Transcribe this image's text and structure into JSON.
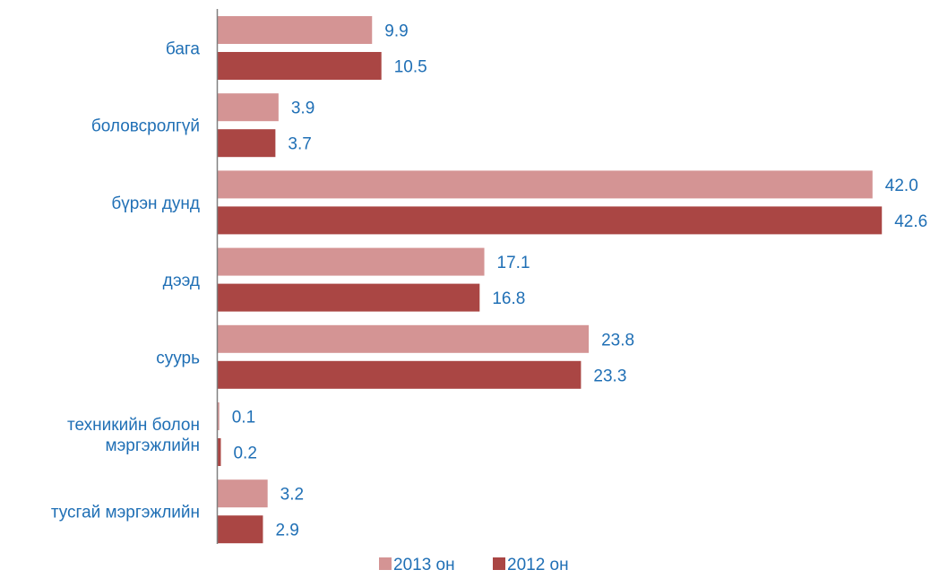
{
  "chart_data": {
    "type": "bar",
    "orientation": "horizontal",
    "categories": [
      [
        "бага"
      ],
      [
        "боловсролгүй"
      ],
      [
        "бүрэн дунд"
      ],
      [
        "дээд"
      ],
      [
        "суурь"
      ],
      [
        "техникийн болон",
        "мэргэжлийн"
      ],
      [
        "тусгай мэргэжлийн"
      ]
    ],
    "series": [
      {
        "name": "2013 он",
        "color": "#d49494",
        "values": [
          9.9,
          3.9,
          42.0,
          17.1,
          23.8,
          0.1,
          3.2
        ],
        "labels": [
          "9.9",
          "3.9",
          "42.0",
          "17.1",
          "23.8",
          "0.1",
          "3.2"
        ]
      },
      {
        "name": "2012 он",
        "color": "#aa4644",
        "values": [
          10.5,
          3.7,
          42.6,
          16.8,
          23.3,
          0.2,
          2.9
        ],
        "labels": [
          "10.5",
          "3.7",
          "42.6",
          "16.8",
          "23.3",
          "0.2",
          "2.9"
        ]
      }
    ],
    "xlim": [
      0,
      43
    ],
    "grid": false,
    "legend_position": "bottom",
    "axis_color": "#808080",
    "label_color": "#1f6fb5"
  }
}
